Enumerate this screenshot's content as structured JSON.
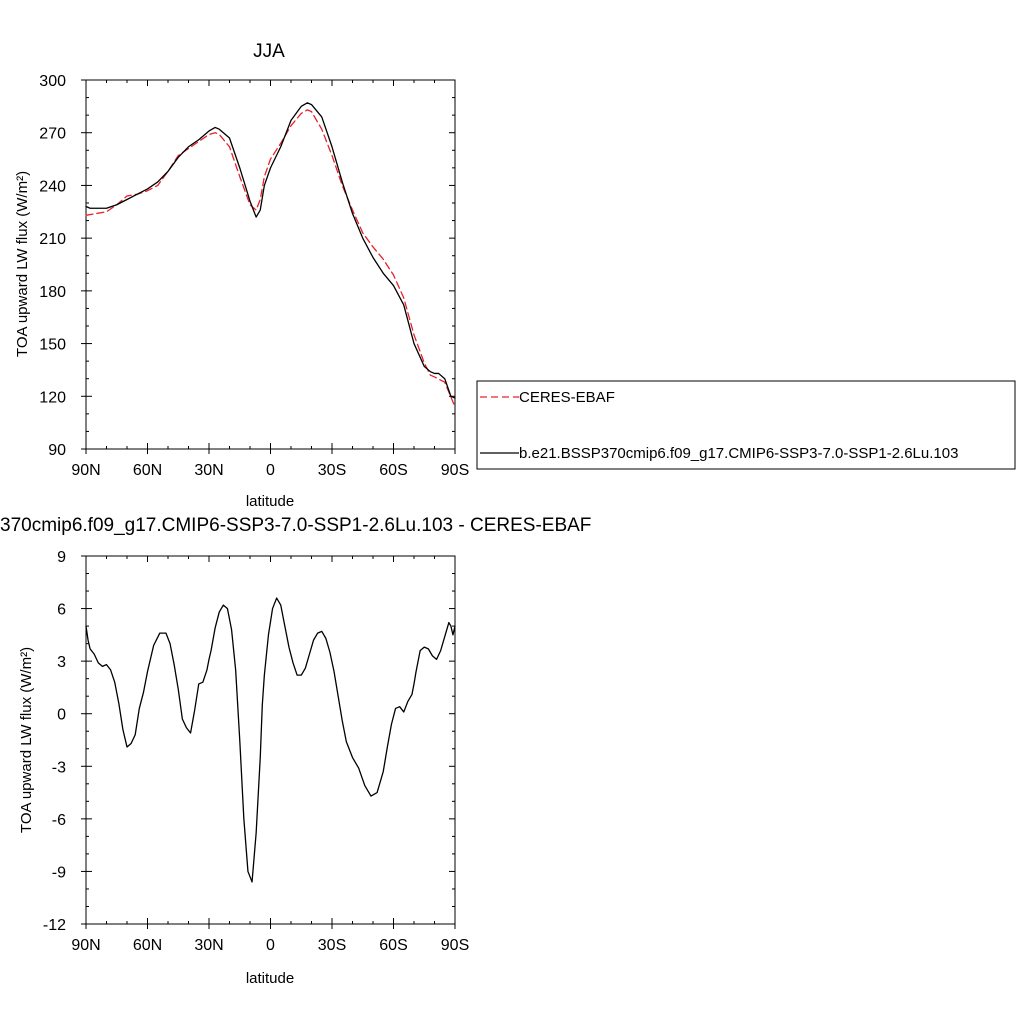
{
  "chart_data": [
    {
      "type": "line",
      "title": "JJA",
      "xlabel": "latitude",
      "ylabel": "TOA upward LW flux (W/m²)",
      "xlim": [
        90,
        -90
      ],
      "ylim": [
        90,
        300
      ],
      "xticks": [
        90,
        60,
        30,
        0,
        -30,
        -60,
        -90
      ],
      "xticklabels": [
        "90N",
        "60N",
        "30N",
        "0",
        "30S",
        "60S",
        "90S"
      ],
      "yticks": [
        90,
        120,
        150,
        180,
        210,
        240,
        270,
        300
      ],
      "yticklabels": [
        "90",
        "120",
        "150",
        "180",
        "210",
        "240",
        "270",
        "300"
      ],
      "legend": {
        "position": "right",
        "entries": [
          "CERES-EBAF",
          "b.e21.BSSP370cmip6.f09_g17.CMIP6-SSP3-7.0-SSP1-2.6Lu.103"
        ]
      },
      "series": [
        {
          "name": "CERES-EBAF",
          "color": "#e8202a",
          "dash": "dashed",
          "x": [
            90,
            85,
            80,
            75,
            70,
            65,
            60,
            55,
            50,
            45,
            40,
            35,
            30,
            27,
            25,
            20,
            15,
            10,
            7,
            5,
            3,
            0,
            -5,
            -10,
            -15,
            -18,
            -20,
            -25,
            -30,
            -35,
            -40,
            -45,
            -50,
            -55,
            -60,
            -65,
            -70,
            -75,
            -78,
            -80,
            -85,
            -90
          ],
          "y": [
            223,
            224,
            225,
            229,
            234,
            235,
            237,
            240,
            248,
            257,
            261,
            265,
            269,
            270,
            269,
            262,
            245,
            229,
            226,
            232,
            245,
            255,
            264,
            274,
            281,
            283,
            282,
            272,
            257,
            240,
            226,
            213,
            205,
            198,
            189,
            176,
            155,
            139,
            132,
            131,
            128,
            114
          ]
        },
        {
          "name": "b.e21.BSSP370cmip6.f09_g17.CMIP6-SSP3-7.0-SSP1-2.6Lu.103",
          "color": "#000000",
          "dash": "solid",
          "x": [
            90,
            88,
            85,
            80,
            75,
            70,
            65,
            60,
            55,
            50,
            45,
            40,
            35,
            30,
            27,
            25,
            20,
            15,
            10,
            7,
            5,
            3,
            0,
            -5,
            -10,
            -15,
            -18,
            -20,
            -25,
            -30,
            -35,
            -40,
            -45,
            -50,
            -55,
            -60,
            -65,
            -70,
            -75,
            -78,
            -80,
            -82,
            -85,
            -88,
            -90
          ],
          "y": [
            228,
            227,
            227,
            227,
            229,
            232,
            235,
            238,
            242,
            248,
            256,
            262,
            266,
            271,
            273,
            272,
            267,
            250,
            231,
            222,
            226,
            240,
            250,
            262,
            277,
            285,
            287,
            286,
            279,
            262,
            242,
            224,
            210,
            199,
            190,
            183,
            172,
            150,
            137,
            134,
            133,
            133,
            130,
            120,
            119
          ]
        }
      ]
    },
    {
      "type": "line",
      "title": "370cmip6.f09_g17.CMIP6-SSP3-7.0-SSP1-2.6Lu.103 - CERES-EBAF",
      "xlabel": "latitude",
      "ylabel": "TOA upward LW flux (W/m²)",
      "xlim": [
        90,
        -90
      ],
      "ylim": [
        -12,
        9
      ],
      "xticks": [
        90,
        60,
        30,
        0,
        -30,
        -60,
        -90
      ],
      "xticklabels": [
        "90N",
        "60N",
        "30N",
        "0",
        "30S",
        "60S",
        "90S"
      ],
      "yticks": [
        -12,
        -9,
        -6,
        -3,
        0,
        3,
        6,
        9
      ],
      "yticklabels": [
        "-12",
        "-9",
        "-6",
        "-3",
        "0",
        "3",
        "6",
        "9"
      ],
      "series": [
        {
          "color": "#000000",
          "dash": "solid",
          "x": [
            90,
            89,
            88,
            86,
            84,
            82,
            80,
            78,
            76,
            74,
            72,
            70,
            68,
            66,
            64,
            62,
            60,
            57,
            54,
            51,
            49,
            47,
            45,
            43,
            41,
            39,
            37,
            35,
            33,
            31,
            30,
            29,
            27,
            25,
            23,
            21,
            19,
            17,
            15,
            13,
            11,
            9,
            7,
            5,
            4,
            3,
            1,
            -1,
            -3,
            -5,
            -7,
            -9,
            -11,
            -13,
            -15,
            -17,
            -19,
            -21,
            -23,
            -25,
            -27,
            -29,
            -31,
            -33,
            -35,
            -37,
            -40,
            -43,
            -46,
            -49,
            -52,
            -55,
            -57,
            -59,
            -61,
            -63,
            -65,
            -67,
            -69,
            -70,
            -71,
            -72,
            -73,
            -75,
            -77,
            -79,
            -81,
            -83,
            -85,
            -87,
            -88,
            -89,
            -90
          ],
          "y": [
            5.0,
            4.2,
            3.7,
            3.4,
            2.9,
            2.7,
            2.8,
            2.5,
            1.8,
            0.6,
            -0.9,
            -1.9,
            -1.7,
            -1.2,
            0.3,
            1.2,
            2.4,
            3.9,
            4.6,
            4.6,
            4.0,
            2.8,
            1.4,
            -0.3,
            -0.8,
            -1.1,
            0.2,
            1.7,
            1.8,
            2.5,
            3.1,
            3.6,
            4.9,
            5.8,
            6.2,
            6.0,
            4.8,
            2.5,
            -1.5,
            -6.0,
            -9.0,
            -9.6,
            -6.8,
            -2.5,
            0.5,
            2.2,
            4.5,
            6.0,
            6.6,
            6.2,
            5.0,
            3.8,
            2.9,
            2.2,
            2.2,
            2.6,
            3.4,
            4.2,
            4.6,
            4.7,
            4.3,
            3.5,
            2.4,
            1.0,
            -0.4,
            -1.6,
            -2.5,
            -3.1,
            -4.1,
            -4.7,
            -4.5,
            -3.3,
            -1.9,
            -0.6,
            0.3,
            0.4,
            0.1,
            0.7,
            1.1,
            1.7,
            2.4,
            3.0,
            3.6,
            3.8,
            3.7,
            3.3,
            3.1,
            3.6,
            4.4,
            5.2,
            5.0,
            4.5,
            5.0
          ]
        }
      ]
    }
  ]
}
